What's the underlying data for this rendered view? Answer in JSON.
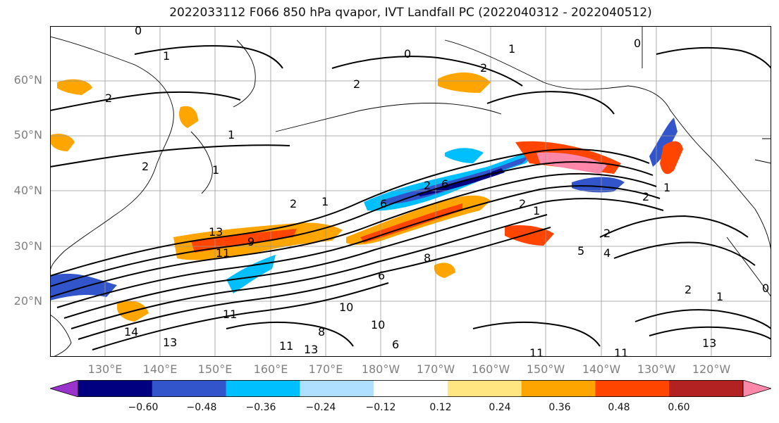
{
  "title": "2022033112 F066 850 hPa qvapor, IVT Landfall PC (2022040312 - 2022040512)",
  "lat_labels": [
    "60°N",
    "50°N",
    "40°N",
    "30°N",
    "20°N"
  ],
  "lon_labels": [
    "130°E",
    "140°E",
    "150°E",
    "160°E",
    "170°E",
    "180°W",
    "170°W",
    "160°W",
    "150°W",
    "140°W",
    "130°W",
    "120°W"
  ],
  "colorbar": {
    "colors": [
      "#9933cc",
      "#000080",
      "#3355cc",
      "#00bfff",
      "#b0e0ff",
      "#ffffff",
      "#ffe680",
      "#ffa500",
      "#ff4500",
      "#b22222",
      "#ff88aa"
    ],
    "ticks": [
      "−0.60",
      "−0.48",
      "−0.36",
      "−0.24",
      "−0.12",
      "0.12",
      "0.24",
      "0.36",
      "0.48",
      "0.60"
    ]
  },
  "contour_labels": [
    "0",
    "1",
    "0",
    "0",
    "1",
    "2",
    "2",
    "1",
    "2",
    "1",
    "1",
    "2",
    "2",
    "2",
    "6",
    "6",
    "2",
    "1",
    "2",
    "2",
    "1",
    "5",
    "4",
    "2",
    "1",
    "0",
    "11",
    "9",
    "8",
    "6",
    "11",
    "14",
    "13",
    "11",
    "13",
    "6",
    "10",
    "8",
    "10",
    "13",
    "11",
    "13",
    "11"
  ]
}
